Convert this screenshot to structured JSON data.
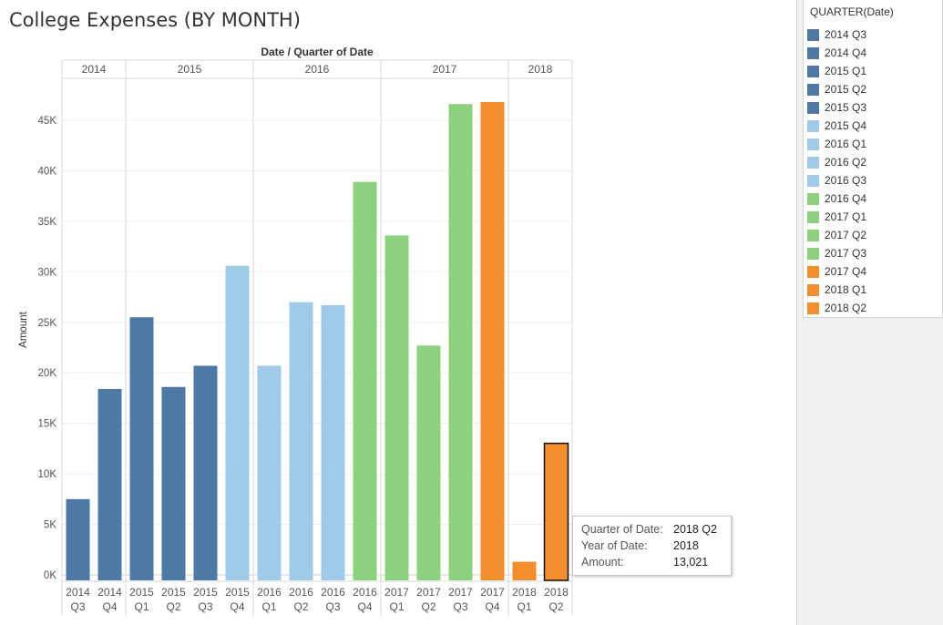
{
  "title": "College Expenses (BY MONTH)",
  "chart_data": {
    "type": "bar",
    "column_header": "Date  /  Quarter of Date",
    "ylabel": "Amount",
    "ylim": [
      0,
      48000
    ],
    "yticks": [
      0,
      5000,
      10000,
      15000,
      20000,
      25000,
      30000,
      35000,
      40000,
      45000
    ],
    "ytick_labels": [
      "0K",
      "5K",
      "10K",
      "15K",
      "20K",
      "25K",
      "30K",
      "35K",
      "40K",
      "45K"
    ],
    "years": [
      {
        "label": "2014",
        "count": 2
      },
      {
        "label": "2015",
        "count": 4
      },
      {
        "label": "2016",
        "count": 4
      },
      {
        "label": "2017",
        "count": 4
      },
      {
        "label": "2018",
        "count": 2
      }
    ],
    "bars": [
      {
        "year": "2014",
        "quarter": "Q3",
        "value": 7500,
        "color": "#4e79a7"
      },
      {
        "year": "2014",
        "quarter": "Q4",
        "value": 18400,
        "color": "#4e79a7"
      },
      {
        "year": "2015",
        "quarter": "Q1",
        "value": 25500,
        "color": "#4e79a7"
      },
      {
        "year": "2015",
        "quarter": "Q2",
        "value": 18600,
        "color": "#4e79a7"
      },
      {
        "year": "2015",
        "quarter": "Q3",
        "value": 20700,
        "color": "#4e79a7"
      },
      {
        "year": "2015",
        "quarter": "Q4",
        "value": 30600,
        "color": "#a0cbe8"
      },
      {
        "year": "2016",
        "quarter": "Q1",
        "value": 20700,
        "color": "#a0cbe8"
      },
      {
        "year": "2016",
        "quarter": "Q2",
        "value": 27000,
        "color": "#a0cbe8"
      },
      {
        "year": "2016",
        "quarter": "Q3",
        "value": 26700,
        "color": "#a0cbe8"
      },
      {
        "year": "2016",
        "quarter": "Q4",
        "value": 38900,
        "color": "#8cd17d"
      },
      {
        "year": "2017",
        "quarter": "Q1",
        "value": 33600,
        "color": "#8cd17d"
      },
      {
        "year": "2017",
        "quarter": "Q2",
        "value": 22700,
        "color": "#8cd17d"
      },
      {
        "year": "2017",
        "quarter": "Q3",
        "value": 46600,
        "color": "#8cd17d"
      },
      {
        "year": "2017",
        "quarter": "Q4",
        "value": 46800,
        "color": "#f28e2b"
      },
      {
        "year": "2018",
        "quarter": "Q1",
        "value": 1300,
        "color": "#f28e2b"
      },
      {
        "year": "2018",
        "quarter": "Q2",
        "value": 13021,
        "color": "#f28e2b",
        "selected": true
      }
    ]
  },
  "legend": {
    "title": "QUARTER(Date)",
    "items": [
      {
        "label": "2014 Q3",
        "color": "#4e79a7"
      },
      {
        "label": "2014 Q4",
        "color": "#4e79a7"
      },
      {
        "label": "2015 Q1",
        "color": "#4e79a7"
      },
      {
        "label": "2015 Q2",
        "color": "#4e79a7"
      },
      {
        "label": "2015 Q3",
        "color": "#4e79a7"
      },
      {
        "label": "2015 Q4",
        "color": "#a0cbe8"
      },
      {
        "label": "2016 Q1",
        "color": "#a0cbe8"
      },
      {
        "label": "2016 Q2",
        "color": "#a0cbe8"
      },
      {
        "label": "2016 Q3",
        "color": "#a0cbe8"
      },
      {
        "label": "2016 Q4",
        "color": "#8cd17d"
      },
      {
        "label": "2017 Q1",
        "color": "#8cd17d"
      },
      {
        "label": "2017 Q2",
        "color": "#8cd17d"
      },
      {
        "label": "2017 Q3",
        "color": "#8cd17d"
      },
      {
        "label": "2017 Q4",
        "color": "#f28e2b"
      },
      {
        "label": "2018 Q1",
        "color": "#f28e2b"
      },
      {
        "label": "2018 Q2",
        "color": "#f28e2b"
      }
    ]
  },
  "tooltip": {
    "rows": [
      {
        "label": "Quarter of Date:",
        "value": "2018 Q2"
      },
      {
        "label": "Year of Date:",
        "value": "2018"
      },
      {
        "label": "Amount:",
        "value": "13,021"
      }
    ]
  }
}
